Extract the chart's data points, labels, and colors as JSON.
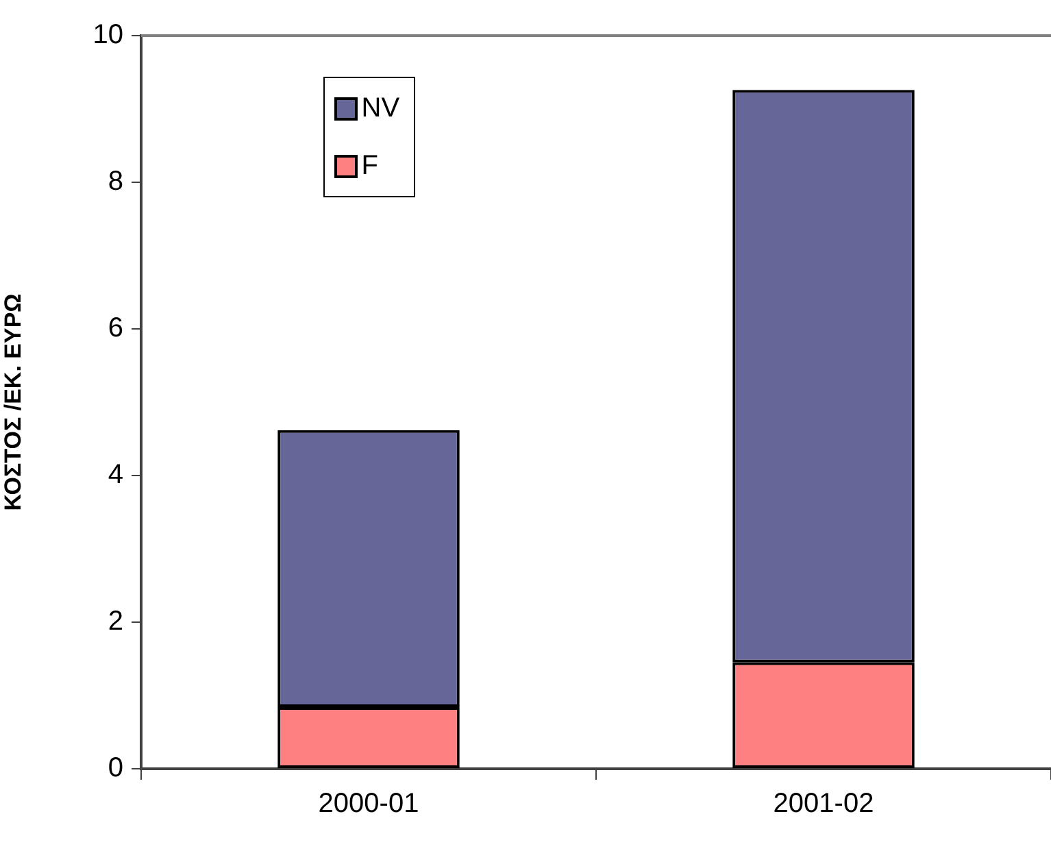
{
  "chart_data": {
    "type": "bar",
    "ylabel": "ΚΟΣΤΟΣ /ΕΚ. ΕΥΡΩ",
    "categories": [
      "2000-01",
      "2001-02"
    ],
    "series": [
      {
        "name": "F",
        "color": "#ff8080",
        "values": [
          0.84,
          1.45
        ]
      },
      {
        "name": "NV",
        "color": "#666699",
        "values": [
          3.78,
          7.81
        ]
      }
    ],
    "stacked": true,
    "ylim": [
      0,
      10
    ],
    "yticks": [
      0,
      2,
      4,
      6,
      8,
      10
    ],
    "grid": false,
    "legend": "top left"
  }
}
